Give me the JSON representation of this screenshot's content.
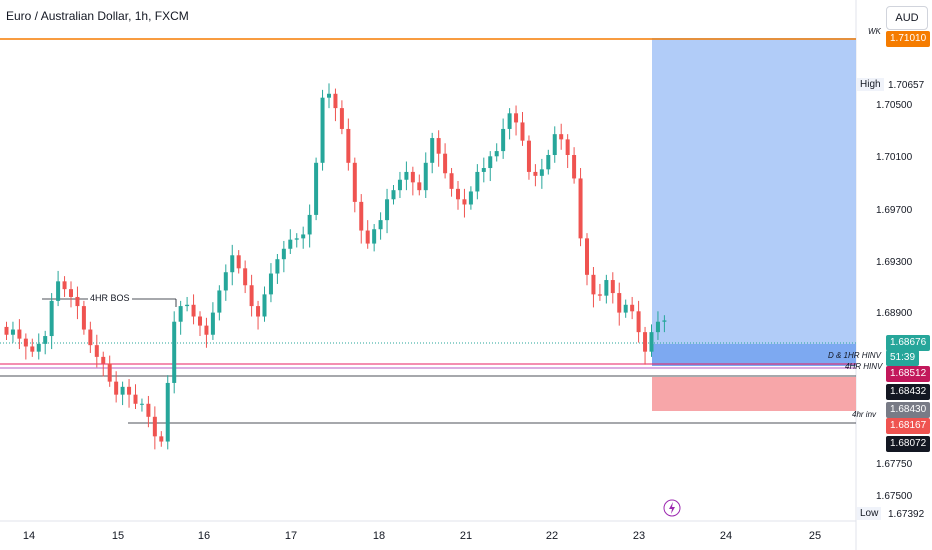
{
  "header": {
    "title": "Euro / Australian Dollar, 1h, FXCM",
    "currency_button": "AUD"
  },
  "price_axis": {
    "ticks": [
      "1.70500",
      "1.70100",
      "1.69700",
      "1.69300",
      "1.68900",
      "1.67750",
      "1.67500"
    ],
    "wk_tag": "1.71010",
    "high_label": "High",
    "high_value": "1.70657",
    "current": "1.68676",
    "countdown": "51:39",
    "tag_red": "1.68512",
    "tag_black": "1.68432",
    "tag_gray": "1.68430",
    "tag_red2": "1.68167",
    "tag_black2": "1.68072",
    "low_label": "Low",
    "low_value": "1.67392"
  },
  "time_axis": [
    "14",
    "15",
    "16",
    "17",
    "18",
    "21",
    "22",
    "23",
    "24",
    "25"
  ],
  "annotations": {
    "bos": "4HR BOS",
    "wk": "WK",
    "d_1hr_hinv": "D & 1HR HINV",
    "hr4_hinv": "4HR HINV",
    "hr4_inv": "4hr inv"
  },
  "colors": {
    "up": "#26a69a",
    "down": "#ef5350",
    "accent": "#2962ff",
    "wk_line": "#f57c00",
    "target_zone": "#a8c7f7",
    "stop_zone": "#f7a1a4"
  },
  "chart_data": {
    "type": "candlestick",
    "y_range": [
      1.6715,
      1.7115
    ],
    "close_sequence": [
      1.6858,
      1.6862,
      1.6855,
      1.6849,
      1.6845,
      1.6851,
      1.6857,
      1.6884,
      1.6899,
      1.6893,
      1.6887,
      1.688,
      1.6862,
      1.685,
      1.6841,
      1.6836,
      1.6822,
      1.6812,
      1.6818,
      1.6812,
      1.6805,
      1.6805,
      1.6795,
      1.678,
      1.6776,
      1.6821,
      1.6868,
      1.688,
      1.6881,
      1.6872,
      1.6865,
      1.6858,
      1.6875,
      1.6892,
      1.6906,
      1.6919,
      1.6909,
      1.6896,
      1.688,
      1.6872,
      1.6889,
      1.6905,
      1.6916,
      1.6924,
      1.6931,
      1.6932,
      1.6935,
      1.695,
      1.699,
      1.704,
      1.7043,
      1.7032,
      1.7016,
      1.699,
      1.696,
      1.6938,
      1.6928,
      1.6939,
      1.6946,
      1.6962,
      1.6969,
      1.6977,
      1.6983,
      1.6975,
      1.6969,
      1.699,
      1.7009,
      1.6997,
      1.6982,
      1.697,
      1.6962,
      1.6958,
      1.6968,
      1.6983,
      1.6986,
      1.6995,
      1.6999,
      1.7016,
      1.7028,
      1.7021,
      1.7007,
      1.6983,
      1.698,
      1.6985,
      1.6996,
      1.7012,
      1.7008,
      1.6996,
      1.6978,
      1.6932,
      1.6904,
      1.6889,
      1.6888,
      1.69,
      1.689,
      1.6875,
      1.6881,
      1.6876,
      1.686,
      1.6845,
      1.686,
      1.6868,
      1.6869
    ]
  }
}
